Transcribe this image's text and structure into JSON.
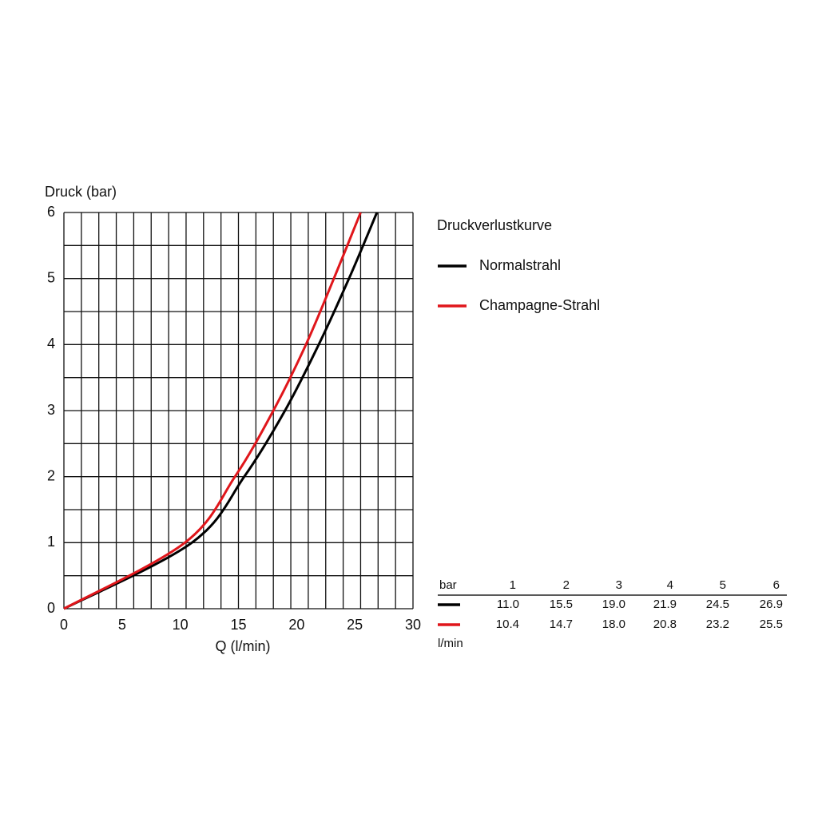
{
  "chart_data": {
    "type": "line",
    "y_label": "Druck (bar)",
    "x_label": "Q (l/min)",
    "xlim": [
      0,
      30
    ],
    "xticks": [
      0,
      5,
      10,
      15,
      20,
      25,
      30
    ],
    "ylim": [
      0,
      6
    ],
    "yticks": [
      0,
      1,
      2,
      3,
      4,
      5,
      6
    ],
    "xgrid": [
      0,
      1.5,
      3,
      4.5,
      6,
      7.5,
      9,
      10.5,
      12,
      13.5,
      15,
      16.5,
      18,
      19.5,
      21,
      22.5,
      24,
      25.5,
      27,
      28.5,
      30
    ],
    "ygrid": [
      0,
      0.5,
      1,
      1.5,
      2,
      2.5,
      3,
      3.5,
      4,
      4.5,
      5,
      5.5,
      6
    ],
    "legend_title": "Druckverlustkurve",
    "series": [
      {
        "name": "Normalstrahl",
        "color": "#000000",
        "x": [
          0,
          11.0,
          15.5,
          19.0,
          21.9,
          24.5,
          26.9
        ],
        "values": [
          0,
          1,
          2,
          3,
          4,
          5,
          6
        ]
      },
      {
        "name": "Champagne-Strahl",
        "color": "#e0161b",
        "x": [
          0,
          10.4,
          14.7,
          18.0,
          20.8,
          23.2,
          25.5
        ],
        "values": [
          0,
          1,
          2,
          3,
          4,
          5,
          6
        ]
      }
    ]
  },
  "table": {
    "unit": "bar",
    "columns": [
      1,
      2,
      3,
      4,
      5,
      6
    ],
    "footer": "l/min",
    "rows": [
      {
        "values": [
          11.0,
          15.5,
          19.0,
          21.9,
          24.5,
          26.9
        ],
        "value_labels": [
          "11.0",
          "15.5",
          "19.0",
          "21.9",
          "24.5",
          "26.9"
        ]
      },
      {
        "values": [
          10.4,
          14.7,
          18.0,
          20.8,
          23.2,
          25.5
        ],
        "value_labels": [
          "10.4",
          "14.7",
          "18.0",
          "20.8",
          "23.2",
          "25.5"
        ]
      }
    ]
  }
}
